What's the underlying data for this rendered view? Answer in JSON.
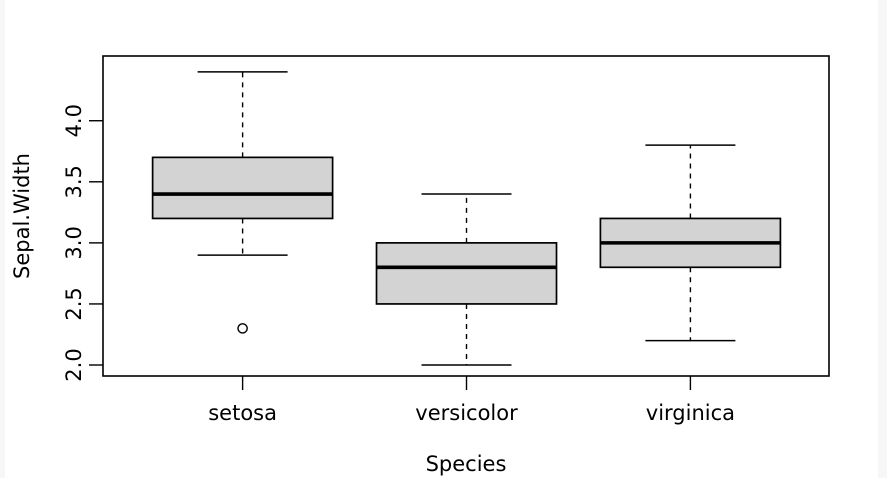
{
  "chart_data": {
    "type": "boxplot",
    "title": "",
    "xlabel": "Species",
    "ylabel": "Sepal.Width",
    "categories": [
      "setosa",
      "versicolor",
      "virginica"
    ],
    "series": [
      {
        "name": "setosa",
        "whisker_low": 2.9,
        "q1": 3.2,
        "median": 3.4,
        "q3": 3.7,
        "whisker_high": 4.4,
        "outliers": [
          2.3
        ]
      },
      {
        "name": "versicolor",
        "whisker_low": 2.0,
        "q1": 2.5,
        "median": 2.8,
        "q3": 3.0,
        "whisker_high": 3.4,
        "outliers": []
      },
      {
        "name": "virginica",
        "whisker_low": 2.2,
        "q1": 2.8,
        "median": 3.0,
        "q3": 3.2,
        "whisker_high": 3.8,
        "outliers": []
      }
    ],
    "y_ticks": [
      {
        "value": 2.0,
        "label": "2.0"
      },
      {
        "value": 2.5,
        "label": "2.5"
      },
      {
        "value": 3.0,
        "label": "3.0"
      },
      {
        "value": 3.5,
        "label": "3.5"
      },
      {
        "value": 4.0,
        "label": "4.0"
      }
    ],
    "ylim": [
      1.91,
      4.53
    ],
    "grid": false,
    "legend_position": "none",
    "colors": {
      "box_fill": "#d3d3d3",
      "box_border": "#000000",
      "median": "#000000",
      "whisker": "#000000",
      "frame": "#000000",
      "text": "#000000",
      "plot_background": "#ffffff",
      "page_background": "#f7f7f8"
    }
  }
}
